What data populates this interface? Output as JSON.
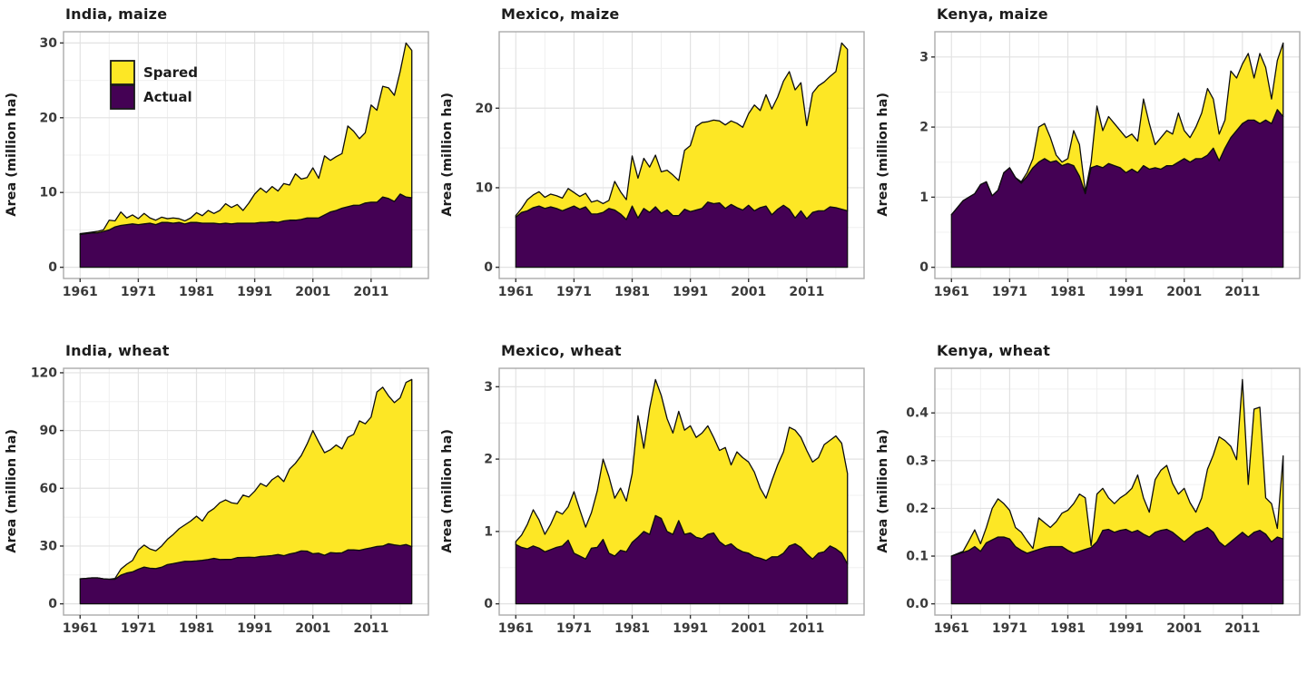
{
  "figure": {
    "ylabel": "Area (million ha)",
    "x_axis_tick_labels": [
      "1961",
      "1971",
      "1981",
      "1991",
      "2001",
      "2011"
    ],
    "legend": {
      "position": "top-left inside first panel",
      "items": [
        {
          "label": "Spared",
          "color": "#FDE725"
        },
        {
          "label": "Actual",
          "color": "#440154"
        }
      ]
    },
    "colors": {
      "spared": "#FDE725",
      "actual": "#440154",
      "outline": "#0d0d0d",
      "grid_major": "#e2e2e2",
      "grid_minor": "#f0f0f0",
      "panel_border": "#ababab",
      "tick": "#333333",
      "text": "#1c1c1c"
    }
  },
  "chart_data": [
    {
      "type": "area",
      "stacked": true,
      "grid": true,
      "show_legend": true,
      "title": "India, maize",
      "ylabel": "Area (million ha)",
      "x": {
        "start": 1961,
        "end": 2018,
        "step": 1
      },
      "xlim": [
        1961,
        2018
      ],
      "x_ticks": [
        1961,
        1971,
        1981,
        1991,
        2001,
        2011
      ],
      "ylim": [
        0,
        30
      ],
      "y_ticks": [
        0,
        10,
        20,
        30
      ],
      "y_tick_labels": [
        "0",
        "10",
        "20",
        "30"
      ],
      "series": [
        {
          "name": "Actual",
          "color": "#440154",
          "values": [
            4.4,
            4.5,
            4.6,
            4.6,
            4.8,
            5.0,
            5.4,
            5.6,
            5.7,
            5.8,
            5.7,
            5.8,
            5.9,
            5.7,
            6.0,
            6.0,
            5.9,
            6.0,
            5.8,
            6.0,
            6.0,
            5.9,
            5.9,
            5.9,
            5.8,
            5.9,
            5.8,
            5.9,
            5.9,
            5.9,
            5.9,
            6.0,
            6.0,
            6.1,
            6.0,
            6.2,
            6.3,
            6.3,
            6.4,
            6.6,
            6.6,
            6.6,
            7.0,
            7.4,
            7.6,
            7.9,
            8.1,
            8.3,
            8.3,
            8.6,
            8.7,
            8.7,
            9.4,
            9.2,
            8.8,
            9.8,
            9.4,
            9.3
          ]
        },
        {
          "name": "Spared",
          "color": "#FDE725",
          "note": "values are cumulative totals (Actual + Spared), the top boundary of the yellow band",
          "values": [
            4.5,
            4.6,
            4.7,
            4.8,
            5.0,
            6.3,
            6.2,
            7.4,
            6.6,
            7.0,
            6.5,
            7.2,
            6.6,
            6.3,
            6.7,
            6.5,
            6.6,
            6.5,
            6.2,
            6.6,
            7.3,
            6.9,
            7.6,
            7.2,
            7.6,
            8.5,
            8.0,
            8.4,
            7.6,
            8.6,
            9.8,
            10.6,
            10.0,
            10.8,
            10.2,
            11.2,
            11.0,
            12.5,
            11.8,
            12.0,
            13.3,
            11.9,
            14.9,
            14.3,
            14.8,
            15.2,
            18.9,
            18.2,
            17.2,
            18.0,
            21.7,
            21.0,
            24.2,
            24.0,
            23.0,
            26.2,
            30.0,
            29.0
          ]
        }
      ]
    },
    {
      "type": "area",
      "stacked": true,
      "grid": true,
      "show_legend": false,
      "title": "Mexico, maize",
      "ylabel": "Area (million ha)",
      "x": {
        "start": 1961,
        "end": 2018,
        "step": 1
      },
      "xlim": [
        1961,
        2018
      ],
      "x_ticks": [
        1961,
        1971,
        1981,
        1991,
        2001,
        2011
      ],
      "ylim": [
        0,
        28.2
      ],
      "y_ticks": [
        0,
        10,
        20
      ],
      "y_tick_labels": [
        "0",
        "10",
        "20"
      ],
      "series": [
        {
          "name": "Actual",
          "color": "#440154",
          "values": [
            6.3,
            6.9,
            7.1,
            7.5,
            7.7,
            7.4,
            7.6,
            7.4,
            7.1,
            7.4,
            7.7,
            7.3,
            7.6,
            6.7,
            6.7,
            6.9,
            7.4,
            7.2,
            6.7,
            6.0,
            7.7,
            6.2,
            7.4,
            6.9,
            7.6,
            6.8,
            7.2,
            6.5,
            6.5,
            7.3,
            7.0,
            7.2,
            7.4,
            8.2,
            8.0,
            8.1,
            7.4,
            7.9,
            7.5,
            7.2,
            7.8,
            7.1,
            7.5,
            7.7,
            6.6,
            7.3,
            7.8,
            7.3,
            6.2,
            7.1,
            6.1,
            6.9,
            7.1,
            7.1,
            7.6,
            7.5,
            7.3,
            7.1
          ]
        },
        {
          "name": "Spared",
          "color": "#FDE725",
          "note": "values are cumulative totals (Actual + Spared)",
          "values": [
            6.5,
            7.4,
            8.5,
            9.1,
            9.5,
            8.8,
            9.2,
            9.0,
            8.7,
            9.9,
            9.4,
            8.9,
            9.3,
            8.2,
            8.4,
            8.0,
            8.4,
            10.8,
            9.5,
            8.5,
            14.0,
            11.2,
            13.7,
            12.6,
            14.1,
            12.0,
            12.2,
            11.6,
            10.9,
            14.7,
            15.3,
            17.7,
            18.2,
            18.3,
            18.5,
            18.4,
            17.9,
            18.4,
            18.1,
            17.6,
            19.3,
            20.4,
            19.7,
            21.7,
            19.9,
            21.4,
            23.4,
            24.6,
            22.3,
            23.2,
            17.8,
            21.9,
            22.8,
            23.3,
            24.0,
            24.6,
            28.2,
            27.4
          ]
        }
      ]
    },
    {
      "type": "area",
      "stacked": true,
      "grid": true,
      "show_legend": false,
      "title": "Kenya, maize",
      "ylabel": "Area (million ha)",
      "x": {
        "start": 1961,
        "end": 2018,
        "step": 1
      },
      "xlim": [
        1961,
        2018
      ],
      "x_ticks": [
        1961,
        1971,
        1981,
        1991,
        2001,
        2011
      ],
      "ylim": [
        0,
        3.2
      ],
      "y_ticks": [
        0,
        1,
        2,
        3
      ],
      "y_tick_labels": [
        "0",
        "1",
        "2",
        "3"
      ],
      "series": [
        {
          "name": "Actual",
          "color": "#440154",
          "values": [
            0.75,
            0.85,
            0.95,
            1.0,
            1.05,
            1.18,
            1.22,
            1.02,
            1.1,
            1.35,
            1.42,
            1.28,
            1.2,
            1.3,
            1.42,
            1.5,
            1.55,
            1.5,
            1.52,
            1.45,
            1.48,
            1.45,
            1.3,
            1.05,
            1.42,
            1.45,
            1.42,
            1.48,
            1.45,
            1.42,
            1.35,
            1.4,
            1.35,
            1.45,
            1.4,
            1.42,
            1.4,
            1.45,
            1.45,
            1.5,
            1.55,
            1.5,
            1.55,
            1.55,
            1.6,
            1.7,
            1.52,
            1.7,
            1.85,
            1.95,
            2.05,
            2.1,
            2.1,
            2.05,
            2.1,
            2.05,
            2.25,
            2.15
          ]
        },
        {
          "name": "Spared",
          "color": "#FDE725",
          "note": "values are cumulative totals (Actual + Spared)",
          "values": [
            0.75,
            0.85,
            0.95,
            1.0,
            1.05,
            1.18,
            1.22,
            1.02,
            1.1,
            1.35,
            1.42,
            1.28,
            1.22,
            1.35,
            1.55,
            2.0,
            2.05,
            1.85,
            1.6,
            1.5,
            1.55,
            1.95,
            1.75,
            1.08,
            1.5,
            2.3,
            1.95,
            2.15,
            2.05,
            1.95,
            1.85,
            1.9,
            1.8,
            2.4,
            2.05,
            1.75,
            1.85,
            1.95,
            1.9,
            2.2,
            1.95,
            1.85,
            2.0,
            2.2,
            2.55,
            2.4,
            1.9,
            2.1,
            2.8,
            2.7,
            2.9,
            3.05,
            2.7,
            3.05,
            2.85,
            2.4,
            2.95,
            3.2
          ]
        }
      ]
    },
    {
      "type": "area",
      "stacked": true,
      "grid": true,
      "show_legend": false,
      "title": "India, wheat",
      "ylabel": "Area (million ha)",
      "x": {
        "start": 1961,
        "end": 2018,
        "step": 1
      },
      "xlim": [
        1961,
        2018
      ],
      "x_ticks": [
        1961,
        1971,
        1981,
        1991,
        2001,
        2011
      ],
      "ylim": [
        0,
        116.5
      ],
      "y_ticks": [
        0,
        30,
        60,
        90,
        120
      ],
      "y_tick_labels": [
        "0",
        "30",
        "60",
        "90",
        "120"
      ],
      "series": [
        {
          "name": "Actual",
          "color": "#440154",
          "values": [
            13.0,
            13.2,
            13.5,
            13.5,
            13.0,
            12.8,
            12.8,
            14.9,
            16.0,
            16.6,
            18.0,
            19.1,
            18.5,
            18.3,
            19.0,
            20.4,
            20.9,
            21.5,
            22.1,
            22.1,
            22.3,
            22.6,
            23.0,
            23.6,
            23.0,
            23.1,
            23.1,
            24.0,
            24.1,
            24.2,
            24.1,
            24.6,
            24.8,
            25.1,
            25.6,
            25.0,
            25.9,
            26.5,
            27.5,
            27.4,
            26.0,
            26.3,
            25.2,
            26.6,
            26.4,
            26.5,
            28.0,
            28.0,
            27.8,
            28.5,
            29.1,
            29.8,
            30.0,
            31.2,
            30.6,
            30.2,
            30.8,
            29.7
          ]
        },
        {
          "name": "Spared",
          "color": "#FDE725",
          "note": "values are cumulative totals (Actual + Spared)",
          "values": [
            13.0,
            13.2,
            13.5,
            13.5,
            13.0,
            12.8,
            13.2,
            18.0,
            20.5,
            22.5,
            28.0,
            30.5,
            28.5,
            27.5,
            30.0,
            33.5,
            36.0,
            39.0,
            41.0,
            43.0,
            45.5,
            43.0,
            47.5,
            49.5,
            52.5,
            54.0,
            52.5,
            52.0,
            56.5,
            55.5,
            58.5,
            62.5,
            61.0,
            64.5,
            66.5,
            63.5,
            70.0,
            73.0,
            77.0,
            83.0,
            90.0,
            84.0,
            78.5,
            80.0,
            82.5,
            80.5,
            86.5,
            88.0,
            95.0,
            93.5,
            97.0,
            110.0,
            112.5,
            108.0,
            104.5,
            107.0,
            115.0,
            116.5
          ]
        }
      ]
    },
    {
      "type": "area",
      "stacked": true,
      "grid": true,
      "show_legend": false,
      "title": "Mexico, wheat",
      "ylabel": "Area (million ha)",
      "x": {
        "start": 1961,
        "end": 2018,
        "step": 1
      },
      "xlim": [
        1961,
        2018
      ],
      "x_ticks": [
        1961,
        1971,
        1981,
        1991,
        2001,
        2011
      ],
      "ylim": [
        0,
        3.1
      ],
      "y_ticks": [
        0,
        1,
        2,
        3
      ],
      "y_tick_labels": [
        "0",
        "1",
        "2",
        "3"
      ],
      "series": [
        {
          "name": "Actual",
          "color": "#440154",
          "values": [
            0.82,
            0.78,
            0.76,
            0.8,
            0.77,
            0.72,
            0.75,
            0.78,
            0.8,
            0.88,
            0.7,
            0.66,
            0.62,
            0.77,
            0.78,
            0.89,
            0.7,
            0.66,
            0.74,
            0.72,
            0.85,
            0.92,
            1.0,
            0.96,
            1.22,
            1.18,
            1.0,
            0.96,
            1.15,
            0.96,
            0.98,
            0.92,
            0.9,
            0.96,
            0.98,
            0.86,
            0.8,
            0.83,
            0.76,
            0.72,
            0.7,
            0.65,
            0.63,
            0.6,
            0.65,
            0.65,
            0.7,
            0.8,
            0.83,
            0.78,
            0.69,
            0.62,
            0.7,
            0.72,
            0.8,
            0.76,
            0.7,
            0.55
          ]
        },
        {
          "name": "Spared",
          "color": "#FDE725",
          "note": "values are cumulative totals (Actual + Spared)",
          "values": [
            0.86,
            0.95,
            1.1,
            1.3,
            1.16,
            0.96,
            1.1,
            1.28,
            1.24,
            1.34,
            1.55,
            1.3,
            1.06,
            1.26,
            1.56,
            2.0,
            1.76,
            1.46,
            1.6,
            1.42,
            1.8,
            2.6,
            2.15,
            2.7,
            3.1,
            2.88,
            2.56,
            2.36,
            2.66,
            2.4,
            2.46,
            2.3,
            2.36,
            2.46,
            2.3,
            2.12,
            2.16,
            1.92,
            2.1,
            2.02,
            1.96,
            1.82,
            1.6,
            1.46,
            1.7,
            1.92,
            2.1,
            2.44,
            2.4,
            2.3,
            2.12,
            1.96,
            2.02,
            2.2,
            2.26,
            2.32,
            2.22,
            1.8
          ]
        }
      ]
    },
    {
      "type": "area",
      "stacked": true,
      "grid": true,
      "show_legend": false,
      "title": "Kenya, wheat",
      "ylabel": "Area (million ha)",
      "x": {
        "start": 1961,
        "end": 2018,
        "step": 1
      },
      "xlim": [
        1961,
        2018
      ],
      "x_ticks": [
        1961,
        1971,
        1981,
        1991,
        2001,
        2011
      ],
      "ylim": [
        0,
        0.47
      ],
      "y_ticks": [
        0,
        0.1,
        0.2,
        0.3,
        0.4
      ],
      "y_tick_labels": [
        "0.0",
        "0.1",
        "0.2",
        "0.3",
        "0.4"
      ],
      "series": [
        {
          "name": "Actual",
          "color": "#440154",
          "values": [
            0.1,
            0.104,
            0.108,
            0.112,
            0.12,
            0.11,
            0.128,
            0.134,
            0.14,
            0.14,
            0.136,
            0.12,
            0.112,
            0.106,
            0.11,
            0.114,
            0.118,
            0.12,
            0.12,
            0.12,
            0.112,
            0.106,
            0.11,
            0.114,
            0.118,
            0.13,
            0.154,
            0.156,
            0.15,
            0.154,
            0.156,
            0.15,
            0.154,
            0.146,
            0.14,
            0.15,
            0.154,
            0.156,
            0.15,
            0.14,
            0.13,
            0.14,
            0.15,
            0.154,
            0.16,
            0.15,
            0.13,
            0.12,
            0.13,
            0.14,
            0.15,
            0.14,
            0.15,
            0.154,
            0.146,
            0.13,
            0.14,
            0.136
          ]
        },
        {
          "name": "Spared",
          "color": "#FDE725",
          "note": "values are cumulative totals (Actual + Spared)",
          "values": [
            0.1,
            0.105,
            0.11,
            0.132,
            0.155,
            0.126,
            0.16,
            0.2,
            0.22,
            0.21,
            0.196,
            0.16,
            0.15,
            0.132,
            0.116,
            0.18,
            0.17,
            0.16,
            0.172,
            0.19,
            0.196,
            0.21,
            0.23,
            0.222,
            0.122,
            0.23,
            0.242,
            0.222,
            0.21,
            0.222,
            0.23,
            0.242,
            0.27,
            0.222,
            0.192,
            0.26,
            0.28,
            0.29,
            0.252,
            0.23,
            0.242,
            0.212,
            0.192,
            0.222,
            0.282,
            0.312,
            0.35,
            0.342,
            0.33,
            0.302,
            0.47,
            0.25,
            0.408,
            0.412,
            0.222,
            0.21,
            0.158,
            0.31
          ]
        }
      ]
    }
  ]
}
